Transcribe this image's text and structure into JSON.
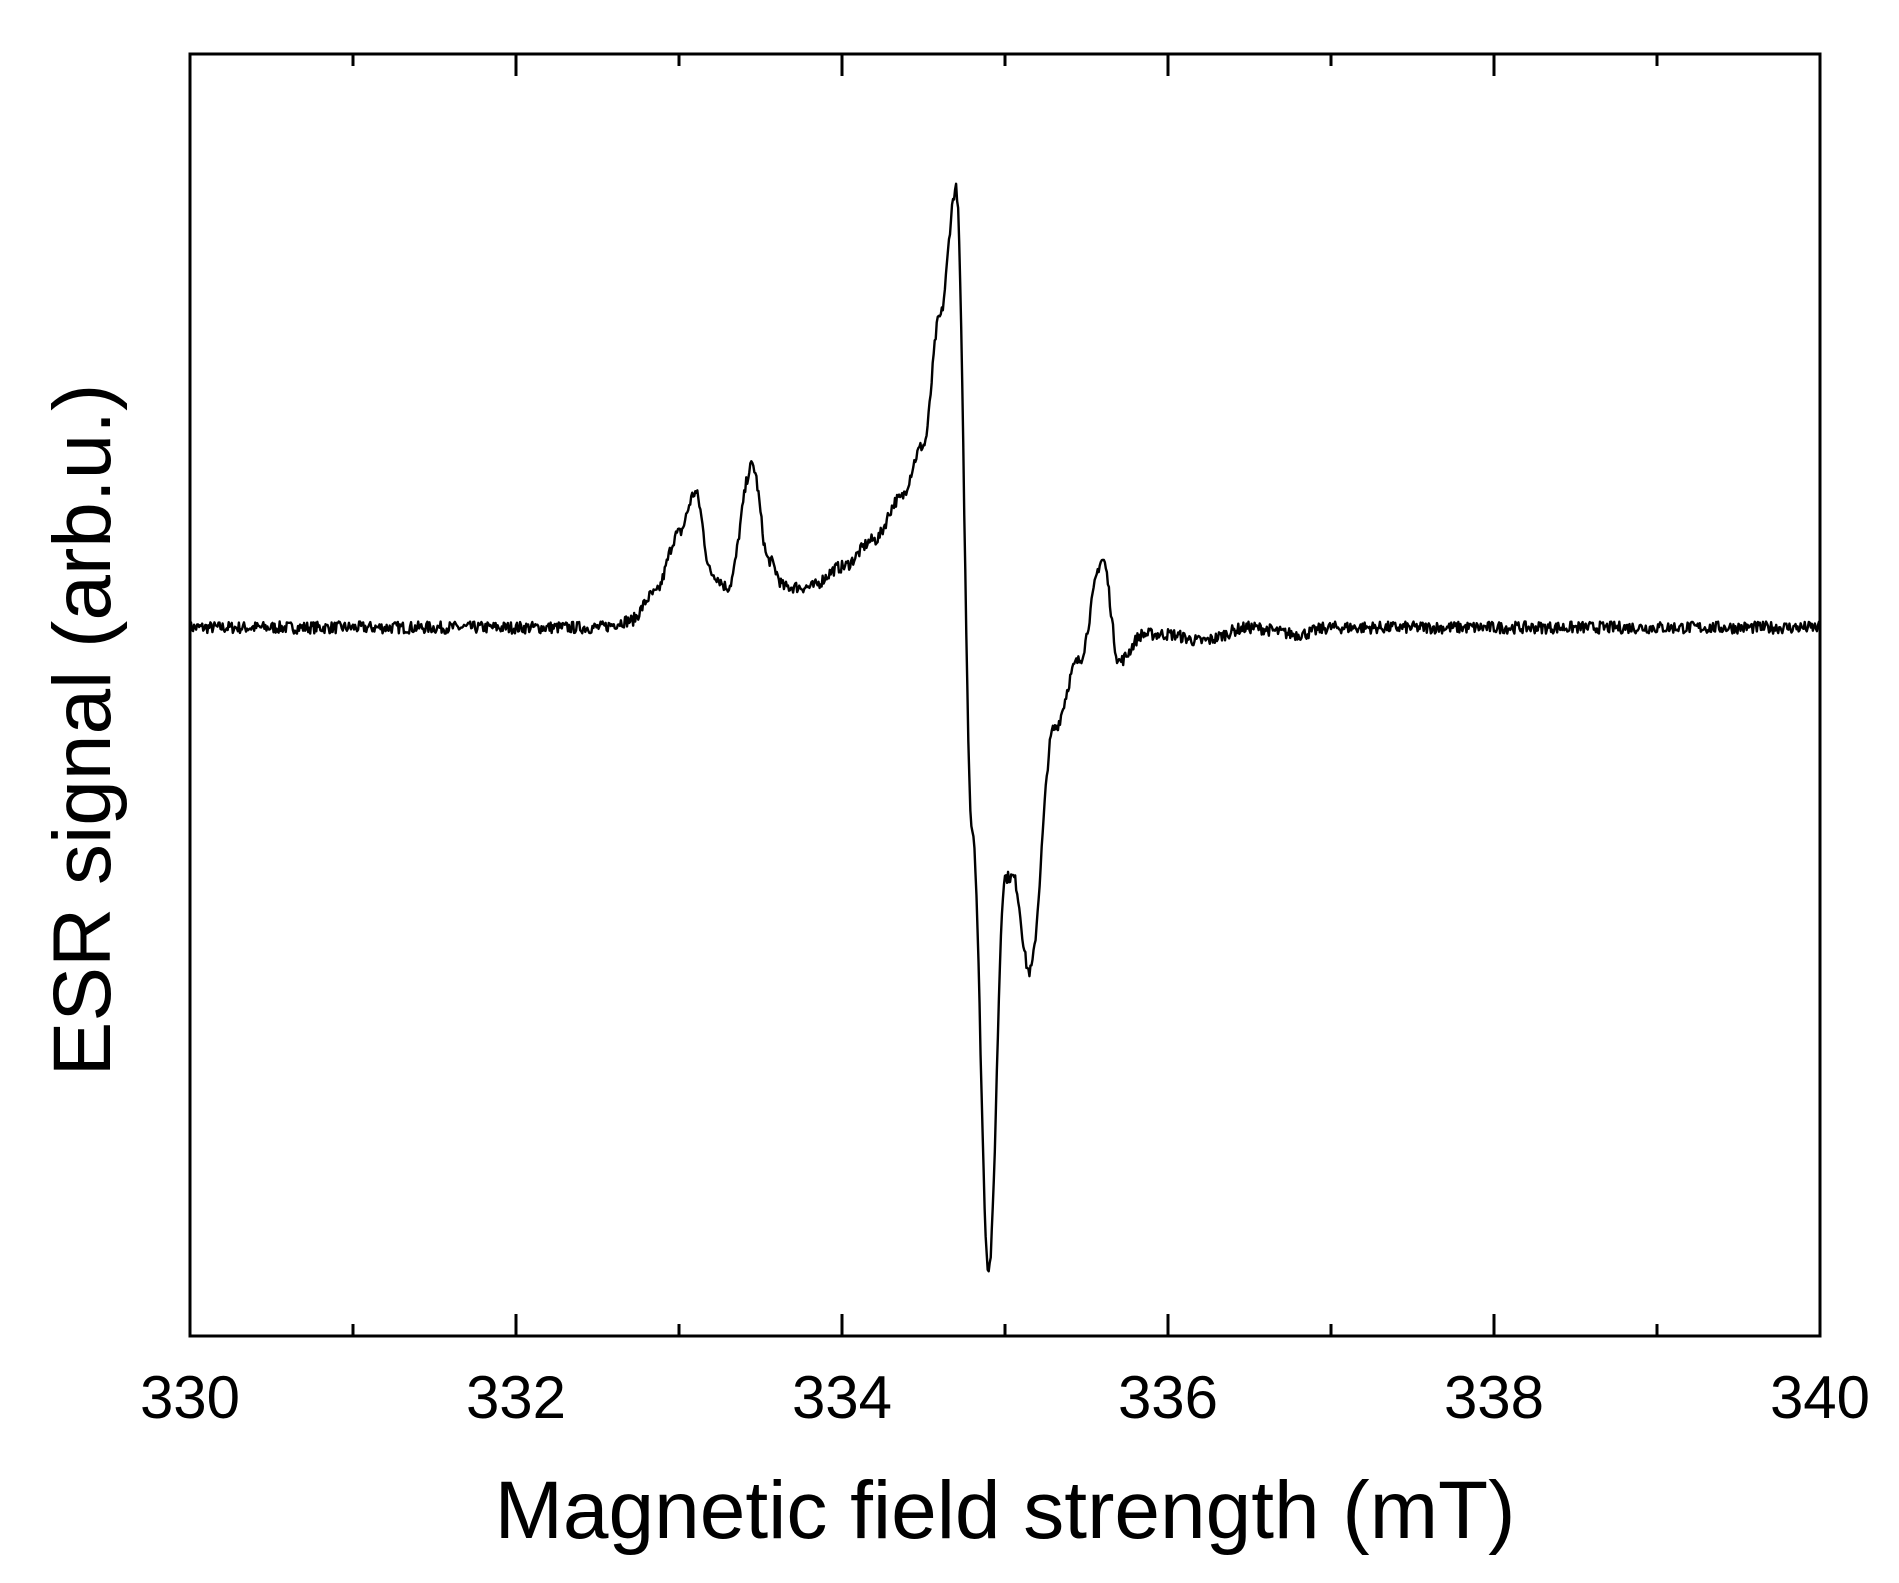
{
  "chart_data": {
    "type": "line",
    "title": "",
    "xlabel": "Magnetic field strength (mT)",
    "ylabel": "ESR signal (arb.u.)",
    "xlim": [
      330,
      340
    ],
    "ylim": [
      -1.05,
      0.85
    ],
    "x_ticks_major": [
      330,
      332,
      334,
      336,
      338,
      340
    ],
    "x_ticks_minor": [
      331,
      333,
      335,
      337,
      339
    ],
    "y_tick_labels": false,
    "grid": false,
    "legend": "none",
    "line_color": "#000000",
    "series": [
      {
        "x": [
          330.0,
          330.5,
          331.0,
          331.5,
          332.0,
          332.5,
          332.7,
          332.85,
          333.0,
          333.1,
          333.2,
          333.3,
          333.45,
          333.55,
          333.65,
          333.8,
          334.0,
          334.2,
          334.35,
          334.5,
          334.6,
          334.7,
          334.8,
          334.9,
          335.0,
          335.05,
          335.15,
          335.3,
          335.45,
          335.6,
          335.7,
          335.85,
          336.0,
          336.2,
          336.5,
          336.8,
          337.0,
          337.3,
          338.0,
          339.0,
          340.0
        ],
        "y": [
          0.0,
          0.0,
          0.0,
          0.0,
          0.0,
          0.0,
          0.01,
          0.05,
          0.14,
          0.2,
          0.08,
          0.06,
          0.24,
          0.1,
          0.06,
          0.06,
          0.09,
          0.13,
          0.19,
          0.27,
          0.46,
          0.65,
          -0.3,
          -0.95,
          -0.37,
          -0.37,
          -0.51,
          -0.15,
          -0.05,
          0.1,
          -0.05,
          -0.01,
          -0.01,
          -0.02,
          0.0,
          -0.01,
          0.0,
          0.0,
          0.0,
          0.0,
          0.0
        ]
      }
    ]
  }
}
